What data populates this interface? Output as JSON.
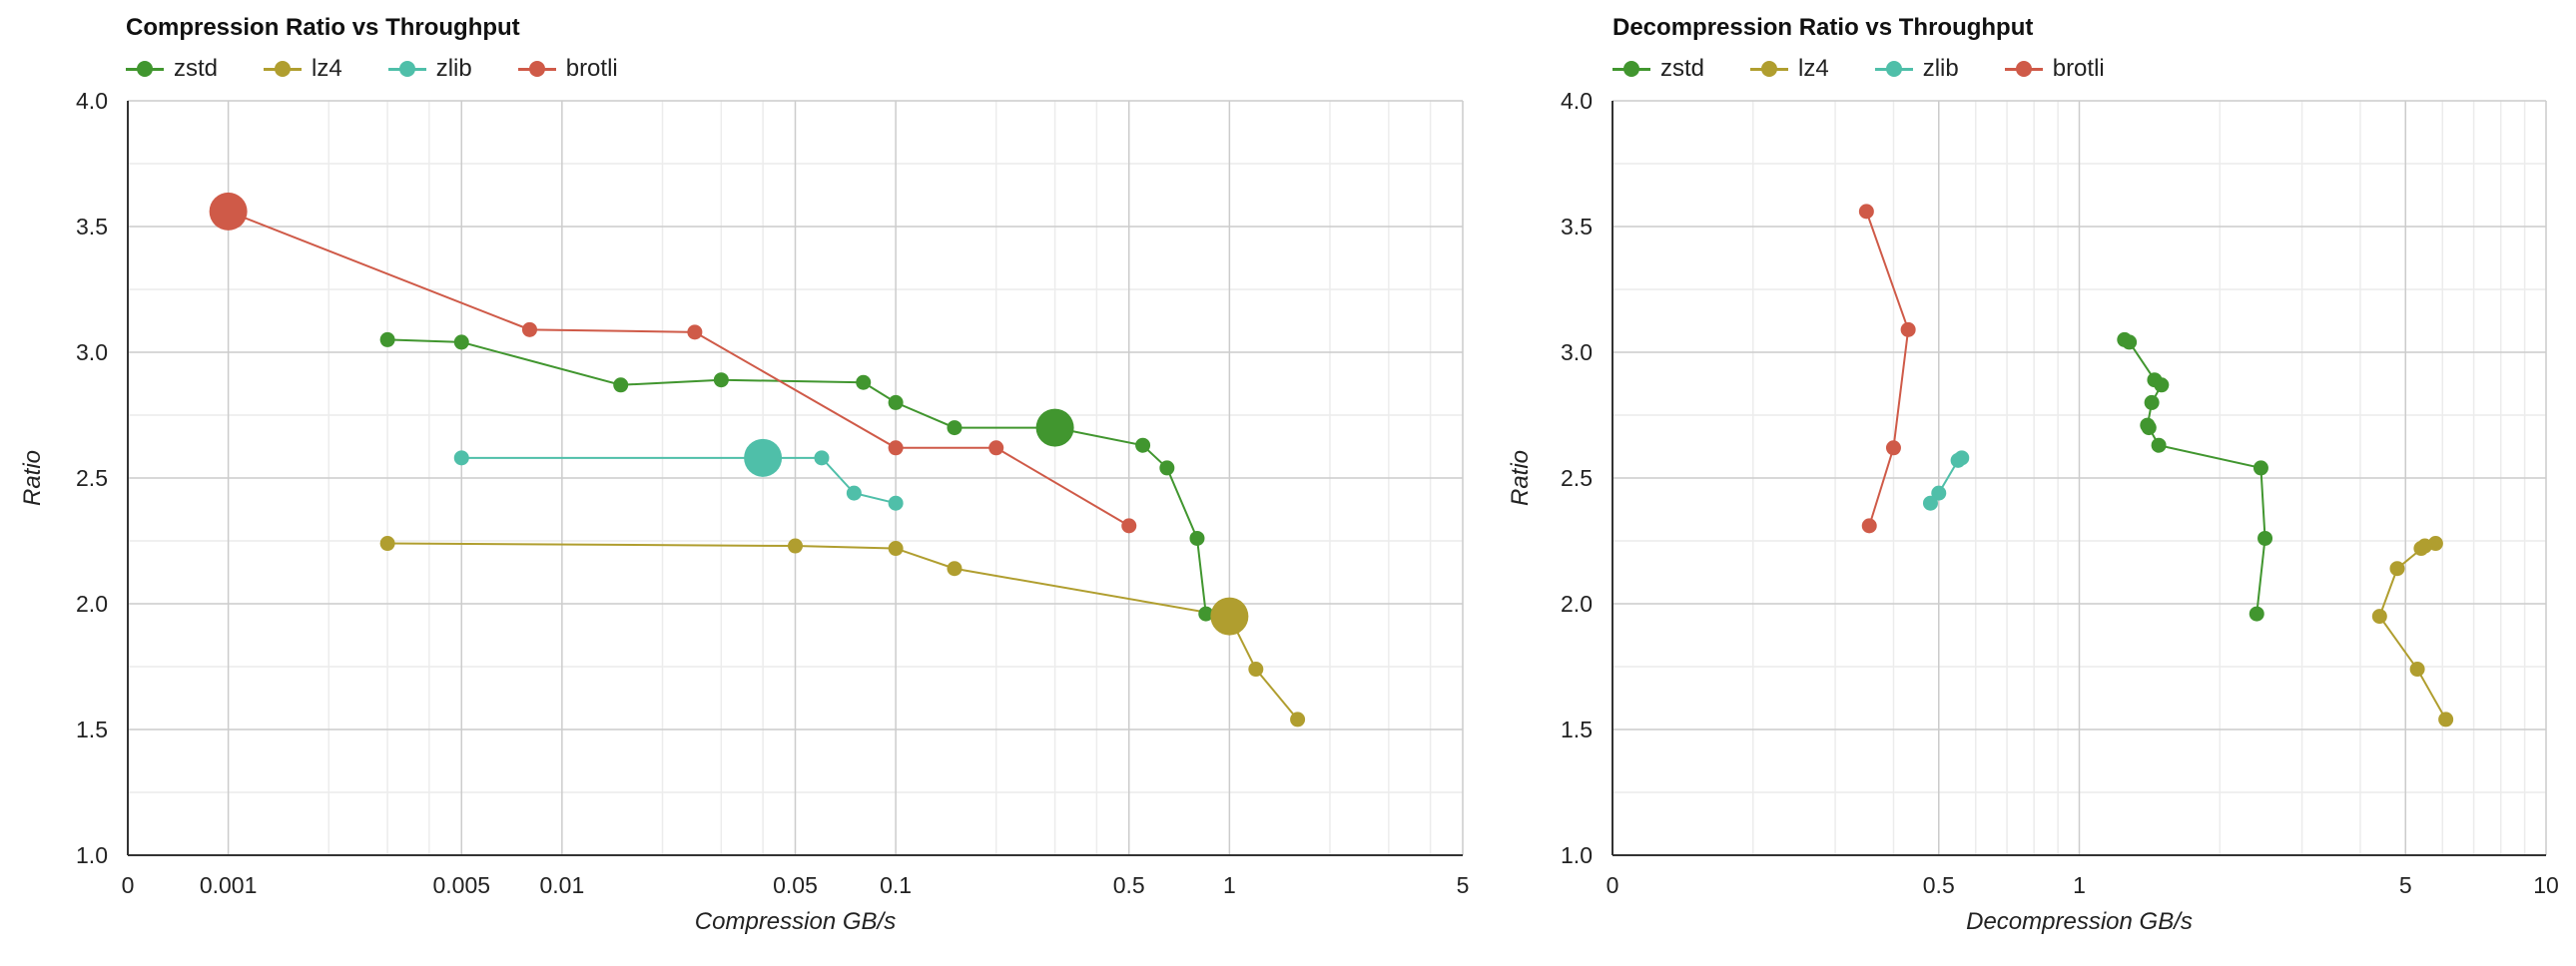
{
  "colors": {
    "zstd": "#41962f",
    "lz4": "#b09e2f",
    "zlib": "#4fbfa9",
    "brotli": "#cf5a48"
  },
  "chart_data": [
    {
      "type": "scatter",
      "title": "Compression Ratio vs Throughput",
      "xlabel": "Compression GB/s",
      "ylabel": "Ratio",
      "xscale": "log",
      "xlim": [
        0,
        5
      ],
      "ylim": [
        1.0,
        4.0
      ],
      "x_tick_labels": [
        "0",
        "0.001",
        "0.005",
        "0.01",
        "0.05",
        "0.1",
        "0.5",
        "1",
        "5"
      ],
      "y_tick_labels": [
        "1.0",
        "1.5",
        "2.0",
        "2.5",
        "3.0",
        "3.5",
        "4.0"
      ],
      "grid": true,
      "legend_position": "top-left",
      "series": [
        {
          "name": "zstd",
          "color": "#41962f",
          "x": [
            0.003,
            0.005,
            0.015,
            0.03,
            0.08,
            0.1,
            0.15,
            0.3,
            0.55,
            0.65,
            0.8,
            0.85
          ],
          "y": [
            3.05,
            3.04,
            2.87,
            2.89,
            2.88,
            2.8,
            2.7,
            2.7,
            2.63,
            2.54,
            2.26,
            1.96
          ],
          "highlight_x": 0.3,
          "highlight_y": 2.7
        },
        {
          "name": "lz4",
          "color": "#b09e2f",
          "x": [
            0.003,
            0.05,
            0.1,
            0.15,
            1.0,
            1.2,
            1.6
          ],
          "y": [
            2.24,
            2.23,
            2.22,
            2.14,
            1.95,
            1.74,
            1.54
          ],
          "highlight_x": 1.0,
          "highlight_y": 1.95
        },
        {
          "name": "zlib",
          "color": "#4fbfa9",
          "x": [
            0.005,
            0.04,
            0.06,
            0.075,
            0.1
          ],
          "y": [
            2.58,
            2.58,
            2.58,
            2.44,
            2.4
          ],
          "highlight_x": 0.04,
          "highlight_y": 2.58
        },
        {
          "name": "brotli",
          "color": "#cf5a48",
          "x": [
            0.001,
            0.008,
            0.025,
            0.1,
            0.2,
            0.5
          ],
          "y": [
            3.56,
            3.09,
            3.08,
            2.62,
            2.62,
            2.31
          ],
          "highlight_x": 0.001,
          "highlight_y": 3.56
        }
      ]
    },
    {
      "type": "scatter",
      "title": "Decompression Ratio vs Throughput",
      "xlabel": "Decompression GB/s",
      "ylabel": "Ratio",
      "xscale": "log",
      "xlim": [
        0,
        10
      ],
      "ylim": [
        1.0,
        4.0
      ],
      "x_tick_labels": [
        "0",
        "0.5",
        "1",
        "5",
        "10"
      ],
      "y_tick_labels": [
        "1.0",
        "1.5",
        "2.0",
        "2.5",
        "3.0",
        "3.5",
        "4.0"
      ],
      "grid": true,
      "legend_position": "top-left",
      "series": [
        {
          "name": "zstd",
          "color": "#41962f",
          "x": [
            1.25,
            1.28,
            1.45,
            1.5,
            1.43,
            1.4,
            1.41,
            1.48,
            2.45,
            2.5,
            2.4
          ],
          "y": [
            3.05,
            3.04,
            2.89,
            2.87,
            2.8,
            2.71,
            2.7,
            2.63,
            2.54,
            2.26,
            1.96
          ]
        },
        {
          "name": "lz4",
          "color": "#b09e2f",
          "x": [
            5.8,
            5.4,
            5.5,
            4.8,
            4.4,
            5.3,
            6.1
          ],
          "y": [
            2.24,
            2.22,
            2.23,
            2.14,
            1.95,
            1.74,
            1.54
          ]
        },
        {
          "name": "zlib",
          "color": "#4fbfa9",
          "x": [
            0.56,
            0.55,
            0.5,
            0.48
          ],
          "y": [
            2.58,
            2.57,
            2.44,
            2.4
          ]
        },
        {
          "name": "brotli",
          "color": "#cf5a48",
          "x": [
            0.35,
            0.43,
            0.4,
            0.355
          ],
          "y": [
            3.56,
            3.09,
            2.62,
            2.31
          ]
        }
      ]
    }
  ]
}
